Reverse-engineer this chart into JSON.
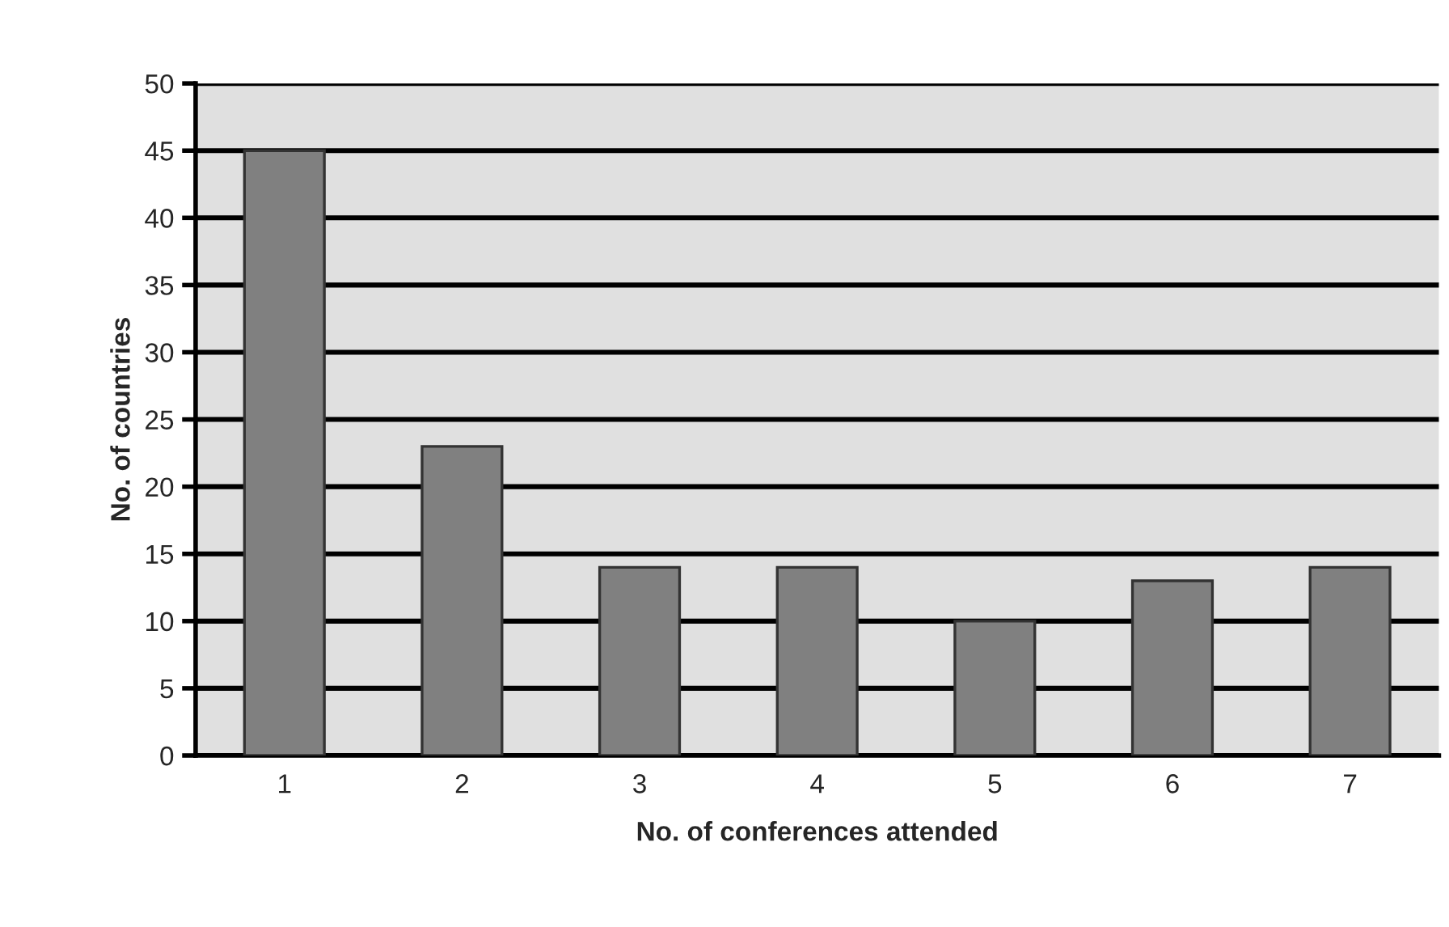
{
  "chart_data": {
    "type": "bar",
    "categories": [
      "1",
      "2",
      "3",
      "4",
      "5",
      "6",
      "7"
    ],
    "values": [
      45,
      23,
      14,
      14,
      10,
      13,
      14
    ],
    "color": "#808080",
    "xlabel": "No. of conferences attended",
    "ylabel": "No. of countries",
    "ylim": [
      0,
      50
    ],
    "yticks": [
      0,
      5,
      10,
      15,
      20,
      25,
      30,
      35,
      40,
      45,
      50
    ],
    "grid": "y",
    "legend": false
  }
}
